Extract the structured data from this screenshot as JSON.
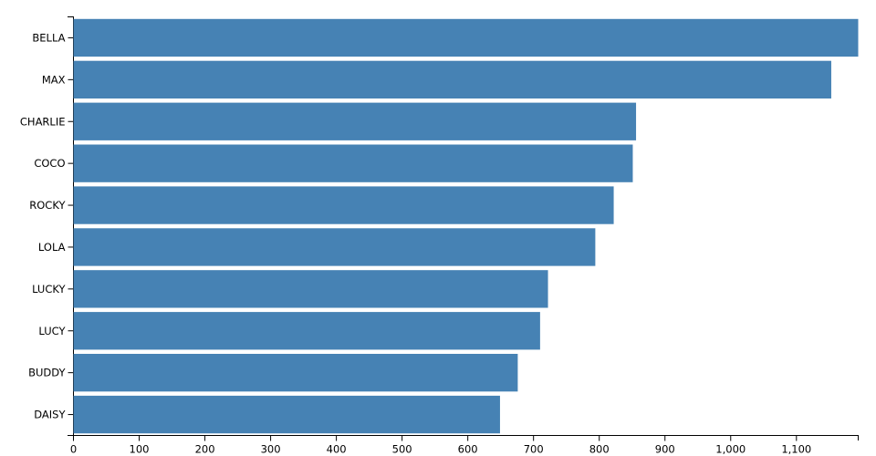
{
  "chart_data": {
    "type": "bar",
    "orientation": "horizontal",
    "categories": [
      "BELLA",
      "MAX",
      "CHARLIE",
      "COCO",
      "ROCKY",
      "LOLA",
      "LUCKY",
      "LUCY",
      "BUDDY",
      "DAISY"
    ],
    "values": [
      1194,
      1153,
      856,
      851,
      822,
      794,
      722,
      710,
      676,
      649
    ],
    "color": "#4682b4",
    "xlim": [
      0,
      1194
    ],
    "xticks": [
      0,
      100,
      200,
      300,
      400,
      500,
      600,
      700,
      800,
      900,
      {
        "value": 1000,
        "label": "1,000"
      },
      {
        "value": 1100,
        "label": "1,100"
      }
    ],
    "grid": false
  }
}
